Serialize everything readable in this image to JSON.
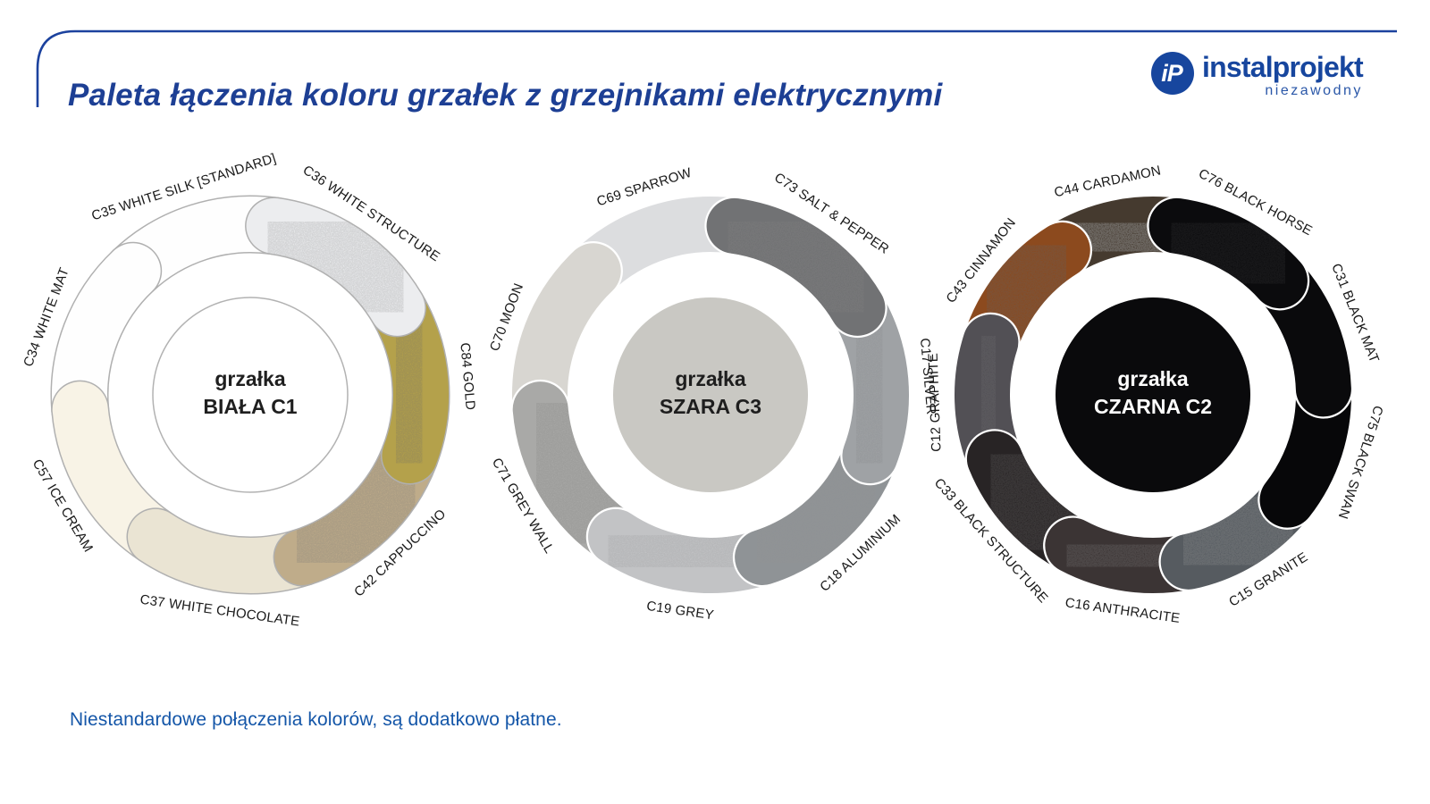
{
  "header": {
    "title": "Paleta łączenia koloru grzałek z grzejnikami elektrycznymi",
    "logo": {
      "monogram": "iP",
      "name": "instalprojekt",
      "tagline": "niezawodny"
    }
  },
  "footer": {
    "note": "Niestandardowe połączenia kolorów, są dodatkowo płatne."
  },
  "colors": {
    "accent_blue": "#1d3f94",
    "note_blue": "#1456a8",
    "logo_blue": "#17469e",
    "label_text": "#191919"
  },
  "donuts": [
    {
      "id": "biala-c1",
      "center_line1": "grzałka",
      "center_line2": "BIAŁA C1",
      "center_fill": "#ffffff",
      "center_stroke": "#b2b2b2",
      "center_text_color": "#1f1f1f",
      "separator_color": "#b0b0b0",
      "separator_extra": 3,
      "segments": [
        {
          "label": "C36 WHITE STRUCTURE",
          "color": "#ecedef",
          "texD": 0.1,
          "texW": 0
        },
        {
          "label": "C84 GOLD",
          "color": "#b4a14b",
          "texD": 0.16,
          "texW": 0.1
        },
        {
          "label": "C42 CAPPUCCINO",
          "color": "#bfac8a",
          "texD": 0.16,
          "texW": 0.12
        },
        {
          "label": "C37 WHITE CHOCOLATE",
          "color": "#eae4d3",
          "texD": 0,
          "texW": 0
        },
        {
          "label": "C57 ICE CREAM",
          "color": "#f8f3e6",
          "texD": 0,
          "texW": 0
        },
        {
          "label": "C34 WHITE MAT",
          "color": "#fefefe",
          "texD": 0,
          "texW": 0
        },
        {
          "label": "C35 WHITE SILK [STANDARD]",
          "color": "#fefefe",
          "texD": 0,
          "texW": 0
        }
      ]
    },
    {
      "id": "szara-c3",
      "center_line1": "grzałka",
      "center_line2": "SZARA C3",
      "center_fill": "#c9c8c3",
      "center_stroke": "none",
      "center_text_color": "#1e1e1e",
      "separator_color": "#ffffff",
      "separator_extra": 4.5,
      "segments": [
        {
          "label": "C73 SALT & PEPPER",
          "color": "#717274",
          "texD": 0.28,
          "texW": 0.22
        },
        {
          "label": "C17 SILVER",
          "color": "#9fa2a5",
          "texD": 0.08,
          "texW": 0.06
        },
        {
          "label": "C18 ALUMINIUM",
          "color": "#8f9396",
          "texD": 0.12,
          "texW": 0.15
        },
        {
          "label": "C19 GREY",
          "color": "#c2c3c5",
          "texD": 0.05,
          "texW": 0
        },
        {
          "label": "C71 GREY WALL",
          "color": "#a9a9a7",
          "texD": 0.06,
          "texW": 0
        },
        {
          "label": "C70 MOON",
          "color": "#d8d6d1",
          "texD": 0,
          "texW": 0
        },
        {
          "label": "C69 SPARROW",
          "color": "#dcdddf",
          "texD": 0,
          "texW": 0
        }
      ]
    },
    {
      "id": "czarna-c2",
      "center_line1": "grzałka",
      "center_line2": "CZARNA C2",
      "center_fill": "#0a0a0c",
      "center_stroke": "none",
      "center_text_color": "#ffffff",
      "separator_color": "#ffffff",
      "separator_extra": 4.5,
      "segments": [
        {
          "label": "C76 BLACK HORSE",
          "color": "#0b0b0d",
          "texD": 0,
          "texW": 0.05
        },
        {
          "label": "C31 BLACK MAT",
          "color": "#0a0a0c",
          "texD": 0,
          "texW": 0
        },
        {
          "label": "C75 BLACK SWAN",
          "color": "#070709",
          "texD": 0,
          "texW": 0
        },
        {
          "label": "C15 GRANITE",
          "color": "#565b60",
          "texD": 0.1,
          "texW": 0.16
        },
        {
          "label": "C16 ANTHRACITE",
          "color": "#3b3434",
          "texD": 0.1,
          "texW": 0.13
        },
        {
          "label": "C33 BLACK STRUCTURE",
          "color": "#282425",
          "texD": 0.08,
          "texW": 0.1
        },
        {
          "label": "C12 GRAPHITE",
          "color": "#525055",
          "texD": 0.06,
          "texW": 0.08
        },
        {
          "label": "C43 CINNAMON",
          "color": "#8c4a1e",
          "texD": 0.22,
          "texW": 0.12
        },
        {
          "label": "C44 CARDAMON",
          "color": "#453a2f",
          "texD": 0.3,
          "texW": 0.3
        }
      ]
    }
  ]
}
